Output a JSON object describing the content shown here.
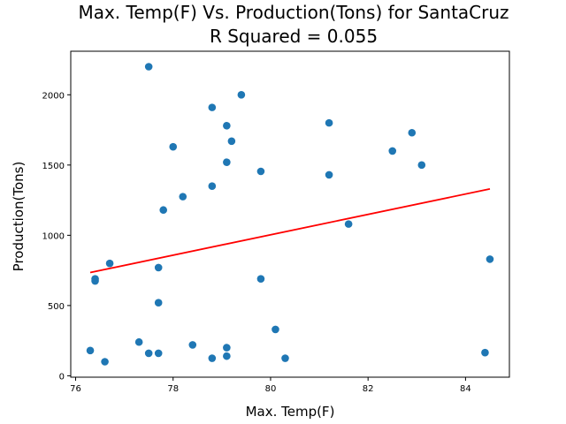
{
  "chart_data": {
    "type": "scatter",
    "title_line1": "Max. Temp(F) Vs. Production(Tons) for SantaCruz",
    "title_line2": "R Squared =  0.055",
    "xlabel": "Max. Temp(F)",
    "ylabel": "Production(Tons)",
    "xlim": [
      75.9,
      84.9
    ],
    "ylim": [
      -10,
      2310
    ],
    "xticks": [
      76,
      78,
      80,
      82,
      84
    ],
    "yticks": [
      0,
      500,
      1000,
      1500,
      2000
    ],
    "grid": false,
    "colors": {
      "points": "#1f77b4",
      "fit_line": "#ff0000"
    },
    "points": [
      {
        "x": 76.3,
        "y": 180
      },
      {
        "x": 76.4,
        "y": 690
      },
      {
        "x": 76.4,
        "y": 675
      },
      {
        "x": 76.6,
        "y": 100
      },
      {
        "x": 76.7,
        "y": 800
      },
      {
        "x": 77.3,
        "y": 240
      },
      {
        "x": 77.5,
        "y": 2200
      },
      {
        "x": 77.5,
        "y": 160
      },
      {
        "x": 77.7,
        "y": 770
      },
      {
        "x": 77.7,
        "y": 520
      },
      {
        "x": 77.7,
        "y": 160
      },
      {
        "x": 77.8,
        "y": 1180
      },
      {
        "x": 78.0,
        "y": 1630
      },
      {
        "x": 78.2,
        "y": 1275
      },
      {
        "x": 78.4,
        "y": 220
      },
      {
        "x": 78.8,
        "y": 1910
      },
      {
        "x": 78.8,
        "y": 1350
      },
      {
        "x": 78.8,
        "y": 125
      },
      {
        "x": 79.1,
        "y": 1780
      },
      {
        "x": 79.1,
        "y": 1520
      },
      {
        "x": 79.1,
        "y": 200
      },
      {
        "x": 79.1,
        "y": 140
      },
      {
        "x": 79.2,
        "y": 1670
      },
      {
        "x": 79.4,
        "y": 2000
      },
      {
        "x": 79.8,
        "y": 1455
      },
      {
        "x": 79.8,
        "y": 690
      },
      {
        "x": 80.1,
        "y": 330
      },
      {
        "x": 80.3,
        "y": 125
      },
      {
        "x": 81.2,
        "y": 1800
      },
      {
        "x": 81.2,
        "y": 1430
      },
      {
        "x": 81.6,
        "y": 1080
      },
      {
        "x": 82.5,
        "y": 1600
      },
      {
        "x": 82.9,
        "y": 1730
      },
      {
        "x": 83.1,
        "y": 1500
      },
      {
        "x": 84.4,
        "y": 165
      },
      {
        "x": 84.5,
        "y": 830
      }
    ],
    "fit_line": {
      "x": [
        76.3,
        84.5
      ],
      "y": [
        735,
        1330
      ]
    }
  }
}
